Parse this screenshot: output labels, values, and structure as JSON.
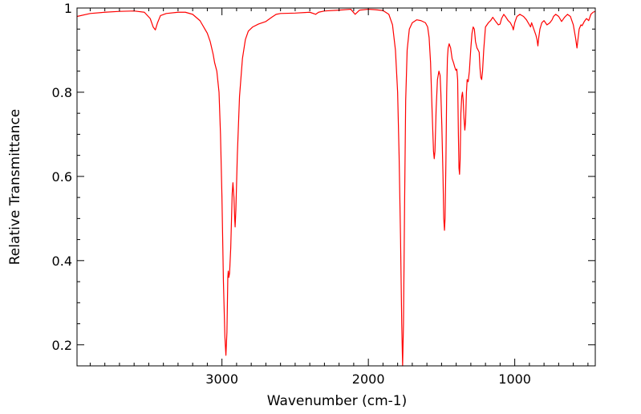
{
  "chart_data": {
    "type": "line",
    "title": "",
    "xlabel": "Wavenumber (cm-1)",
    "ylabel": "Relative Transmittance",
    "x_reversed": true,
    "xlim": [
      3990,
      450
    ],
    "ylim": [
      0.15,
      1.0
    ],
    "grid": false,
    "legend": "none",
    "x_ticks": [
      3000,
      2000,
      1000
    ],
    "x_tick_labels": [
      "3000",
      "2000",
      "1000"
    ],
    "y_ticks": [
      0.2,
      0.4,
      0.6,
      0.8,
      1.0
    ],
    "y_tick_labels": [
      "0.2",
      "0.4",
      "0.6",
      "0.8",
      "1"
    ],
    "series": [
      {
        "color": "#ff0000",
        "points": [
          [
            3990,
            0.98
          ],
          [
            3900,
            0.987
          ],
          [
            3800,
            0.99
          ],
          [
            3700,
            0.992
          ],
          [
            3600,
            0.993
          ],
          [
            3530,
            0.99
          ],
          [
            3490,
            0.975
          ],
          [
            3470,
            0.955
          ],
          [
            3455,
            0.948
          ],
          [
            3440,
            0.965
          ],
          [
            3420,
            0.982
          ],
          [
            3380,
            0.987
          ],
          [
            3300,
            0.99
          ],
          [
            3250,
            0.99
          ],
          [
            3200,
            0.985
          ],
          [
            3150,
            0.97
          ],
          [
            3100,
            0.94
          ],
          [
            3080,
            0.92
          ],
          [
            3060,
            0.89
          ],
          [
            3050,
            0.87
          ],
          [
            3035,
            0.85
          ],
          [
            3020,
            0.8
          ],
          [
            3010,
            0.7
          ],
          [
            3000,
            0.55
          ],
          [
            2990,
            0.35
          ],
          [
            2980,
            0.22
          ],
          [
            2973,
            0.175
          ],
          [
            2966,
            0.23
          ],
          [
            2960,
            0.36
          ],
          [
            2957,
            0.375
          ],
          [
            2953,
            0.36
          ],
          [
            2948,
            0.37
          ],
          [
            2940,
            0.43
          ],
          [
            2930,
            0.56
          ],
          [
            2925,
            0.585
          ],
          [
            2918,
            0.55
          ],
          [
            2913,
            0.5
          ],
          [
            2910,
            0.48
          ],
          [
            2905,
            0.52
          ],
          [
            2895,
            0.65
          ],
          [
            2880,
            0.79
          ],
          [
            2860,
            0.88
          ],
          [
            2840,
            0.925
          ],
          [
            2820,
            0.945
          ],
          [
            2790,
            0.955
          ],
          [
            2750,
            0.962
          ],
          [
            2700,
            0.968
          ],
          [
            2660,
            0.978
          ],
          [
            2630,
            0.985
          ],
          [
            2600,
            0.987
          ],
          [
            2500,
            0.988
          ],
          [
            2400,
            0.99
          ],
          [
            2360,
            0.985
          ],
          [
            2340,
            0.99
          ],
          [
            2300,
            0.993
          ],
          [
            2200,
            0.995
          ],
          [
            2120,
            0.997
          ],
          [
            2090,
            0.985
          ],
          [
            2060,
            0.995
          ],
          [
            2000,
            0.997
          ],
          [
            1950,
            0.996
          ],
          [
            1900,
            0.994
          ],
          [
            1860,
            0.985
          ],
          [
            1835,
            0.96
          ],
          [
            1815,
            0.9
          ],
          [
            1800,
            0.8
          ],
          [
            1790,
            0.65
          ],
          [
            1780,
            0.45
          ],
          [
            1772,
            0.25
          ],
          [
            1766,
            0.15
          ],
          [
            1760,
            0.25
          ],
          [
            1752,
            0.55
          ],
          [
            1745,
            0.78
          ],
          [
            1735,
            0.9
          ],
          [
            1720,
            0.95
          ],
          [
            1700,
            0.965
          ],
          [
            1670,
            0.972
          ],
          [
            1640,
            0.97
          ],
          [
            1610,
            0.965
          ],
          [
            1595,
            0.955
          ],
          [
            1585,
            0.93
          ],
          [
            1575,
            0.87
          ],
          [
            1565,
            0.76
          ],
          [
            1555,
            0.66
          ],
          [
            1550,
            0.642
          ],
          [
            1545,
            0.66
          ],
          [
            1537,
            0.76
          ],
          [
            1528,
            0.83
          ],
          [
            1518,
            0.85
          ],
          [
            1510,
            0.84
          ],
          [
            1505,
            0.8
          ],
          [
            1498,
            0.72
          ],
          [
            1490,
            0.6
          ],
          [
            1485,
            0.5
          ],
          [
            1480,
            0.472
          ],
          [
            1476,
            0.5
          ],
          [
            1470,
            0.64
          ],
          [
            1465,
            0.8
          ],
          [
            1460,
            0.88
          ],
          [
            1455,
            0.905
          ],
          [
            1448,
            0.915
          ],
          [
            1438,
            0.905
          ],
          [
            1428,
            0.88
          ],
          [
            1418,
            0.87
          ],
          [
            1410,
            0.86
          ],
          [
            1402,
            0.852
          ],
          [
            1396,
            0.855
          ],
          [
            1390,
            0.83
          ],
          [
            1385,
            0.7
          ],
          [
            1381,
            0.62
          ],
          [
            1377,
            0.605
          ],
          [
            1373,
            0.64
          ],
          [
            1368,
            0.75
          ],
          [
            1362,
            0.79
          ],
          [
            1357,
            0.8
          ],
          [
            1352,
            0.78
          ],
          [
            1347,
            0.74
          ],
          [
            1341,
            0.71
          ],
          [
            1336,
            0.73
          ],
          [
            1330,
            0.8
          ],
          [
            1325,
            0.83
          ],
          [
            1318,
            0.825
          ],
          [
            1310,
            0.85
          ],
          [
            1300,
            0.905
          ],
          [
            1292,
            0.94
          ],
          [
            1284,
            0.955
          ],
          [
            1276,
            0.95
          ],
          [
            1268,
            0.92
          ],
          [
            1258,
            0.905
          ],
          [
            1250,
            0.9
          ],
          [
            1243,
            0.895
          ],
          [
            1238,
            0.86
          ],
          [
            1232,
            0.835
          ],
          [
            1226,
            0.83
          ],
          [
            1220,
            0.85
          ],
          [
            1212,
            0.9
          ],
          [
            1200,
            0.955
          ],
          [
            1180,
            0.965
          ],
          [
            1165,
            0.97
          ],
          [
            1150,
            0.978
          ],
          [
            1130,
            0.968
          ],
          [
            1112,
            0.96
          ],
          [
            1100,
            0.962
          ],
          [
            1090,
            0.975
          ],
          [
            1075,
            0.985
          ],
          [
            1060,
            0.978
          ],
          [
            1045,
            0.97
          ],
          [
            1030,
            0.965
          ],
          [
            1015,
            0.955
          ],
          [
            1010,
            0.948
          ],
          [
            1000,
            0.965
          ],
          [
            985,
            0.98
          ],
          [
            965,
            0.985
          ],
          [
            940,
            0.98
          ],
          [
            920,
            0.972
          ],
          [
            900,
            0.96
          ],
          [
            892,
            0.955
          ],
          [
            885,
            0.965
          ],
          [
            870,
            0.95
          ],
          [
            855,
            0.935
          ],
          [
            848,
            0.925
          ],
          [
            842,
            0.91
          ],
          [
            836,
            0.93
          ],
          [
            828,
            0.95
          ],
          [
            815,
            0.965
          ],
          [
            800,
            0.97
          ],
          [
            780,
            0.96
          ],
          [
            760,
            0.965
          ],
          [
            745,
            0.972
          ],
          [
            735,
            0.98
          ],
          [
            720,
            0.985
          ],
          [
            700,
            0.98
          ],
          [
            680,
            0.968
          ],
          [
            660,
            0.978
          ],
          [
            640,
            0.985
          ],
          [
            620,
            0.98
          ],
          [
            600,
            0.96
          ],
          [
            585,
            0.93
          ],
          [
            575,
            0.905
          ],
          [
            570,
            0.92
          ],
          [
            560,
            0.95
          ],
          [
            548,
            0.96
          ],
          [
            540,
            0.958
          ],
          [
            525,
            0.968
          ],
          [
            510,
            0.975
          ],
          [
            495,
            0.97
          ],
          [
            480,
            0.985
          ],
          [
            465,
            0.99
          ],
          [
            450,
            0.992
          ]
        ]
      }
    ]
  }
}
